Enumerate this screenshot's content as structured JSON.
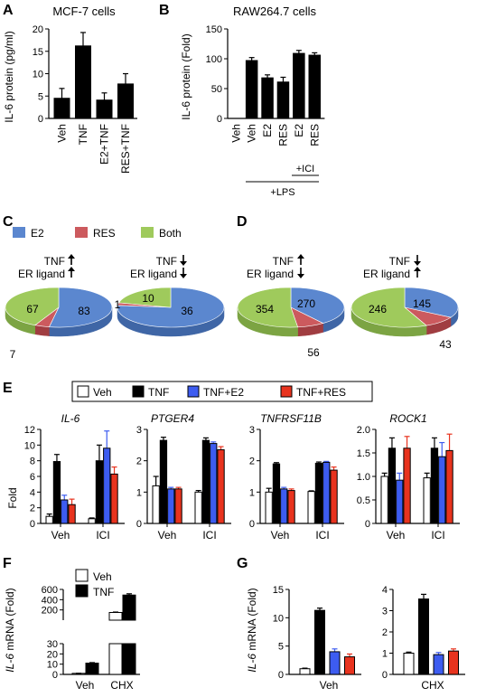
{
  "colors": {
    "e2": "#3d5cf0",
    "res": "#e8331e",
    "veh": "#ffffff",
    "tnf": "#000000",
    "pie_e2": "#5b87cf",
    "pie_res": "#cc5a5e",
    "pie_both": "#9fca5c"
  },
  "panels": {
    "A": "A",
    "B": "B",
    "C": "C",
    "D": "D",
    "E": "E",
    "F": "F",
    "G": "G"
  },
  "chart_data": [
    {
      "id": "A",
      "type": "bar",
      "title": "MCF-7 cells",
      "ylabel": "IL-6 protein (pg/ml)",
      "ylim": [
        0,
        20
      ],
      "yticks": [
        "0",
        "5",
        "10",
        "15",
        "20"
      ],
      "categories": [
        "Veh",
        "TNF",
        "E2+TNF",
        "RES+TNF"
      ],
      "values": [
        4.5,
        16.2,
        4.1,
        7.7
      ],
      "errors": [
        2.2,
        3.0,
        1.6,
        2.3
      ]
    },
    {
      "id": "B",
      "type": "bar",
      "title": "RAW264.7 cells",
      "ylabel": "IL-6 protein (Fold)",
      "ylim": [
        0,
        150
      ],
      "yticks": [
        "0",
        "50",
        "100",
        "150"
      ],
      "categories": [
        "Veh",
        "Veh",
        "E2",
        "RES",
        "E2",
        "RES"
      ],
      "values": [
        0,
        97,
        68,
        61,
        109,
        106
      ],
      "errors": [
        0,
        5,
        5,
        8,
        5,
        4
      ],
      "group_labels": [
        "+ICI",
        "+LPS"
      ]
    },
    {
      "id": "C",
      "type": "pie",
      "legend": [
        "E2",
        "RES",
        "Both"
      ],
      "pies": [
        {
          "tnf_label": "TNF",
          "er_label": "ER ligand",
          "tnf_dir": "up",
          "er_dir": "up",
          "values": [
            83,
            7,
            67
          ],
          "labels": [
            "83",
            "7",
            "67"
          ]
        },
        {
          "tnf_label": "TNF",
          "er_label": "ER ligand",
          "tnf_dir": "down",
          "er_dir": "down",
          "values": [
            36,
            1,
            10
          ],
          "labels": [
            "36",
            "1",
            "10"
          ]
        }
      ]
    },
    {
      "id": "D",
      "type": "pie",
      "pies": [
        {
          "tnf_label": "TNF",
          "er_label": "ER ligand",
          "tnf_dir": "up",
          "er_dir": "down",
          "values": [
            270,
            56,
            354
          ],
          "labels": [
            "270",
            "56",
            "354"
          ]
        },
        {
          "tnf_label": "TNF",
          "er_label": "ER ligand",
          "tnf_dir": "down",
          "er_dir": "up",
          "values": [
            145,
            43,
            246
          ],
          "labels": [
            "145",
            "43",
            "246"
          ]
        }
      ]
    },
    {
      "id": "E",
      "type": "bar",
      "legend": [
        "Veh",
        "TNF",
        "TNF+E2",
        "TNF+RES"
      ],
      "ylabel": "Fold",
      "groups": [
        "Veh",
        "ICI"
      ],
      "subplots": [
        {
          "gene": "IL-6",
          "ylim": [
            0,
            12
          ],
          "yticks": [
            "0",
            "2",
            "4",
            "6",
            "8",
            "10",
            "12"
          ],
          "values": [
            [
              0.9,
              7.9,
              3.0,
              2.4
            ],
            [
              0.6,
              8.0,
              9.6,
              6.3
            ]
          ],
          "errors": [
            [
              0.3,
              0.9,
              0.6,
              0.7
            ],
            [
              0.1,
              2.0,
              2.2,
              0.9
            ]
          ]
        },
        {
          "gene": "PTGER4",
          "ylim": [
            0,
            3
          ],
          "yticks": [
            "0",
            "1",
            "2",
            "3"
          ],
          "values": [
            [
              1.2,
              2.65,
              1.1,
              1.1
            ],
            [
              1.0,
              2.65,
              2.55,
              2.35
            ]
          ],
          "errors": [
            [
              0.3,
              0.1,
              0.05,
              0.05
            ],
            [
              0.05,
              0.08,
              0.05,
              0.1
            ]
          ]
        },
        {
          "gene": "TNFRSF11B",
          "ylim": [
            0,
            3
          ],
          "yticks": [
            "0",
            "1",
            "2",
            "3"
          ],
          "values": [
            [
              1.0,
              1.9,
              1.1,
              1.05
            ],
            [
              1.02,
              1.92,
              1.95,
              1.7
            ]
          ],
          "errors": [
            [
              0.12,
              0.04,
              0.05,
              0.05
            ],
            [
              0.02,
              0.04,
              0.03,
              0.1
            ]
          ]
        },
        {
          "gene": "ROCK1",
          "ylim": [
            0,
            2
          ],
          "yticks": [
            "0",
            "0.5",
            "1.0",
            "1.5",
            "2.0"
          ],
          "values": [
            [
              1.0,
              1.6,
              0.92,
              1.6
            ],
            [
              0.97,
              1.6,
              1.42,
              1.55
            ]
          ],
          "errors": [
            [
              0.07,
              0.22,
              0.15,
              0.25
            ],
            [
              0.1,
              0.22,
              0.3,
              0.35
            ]
          ]
        }
      ]
    },
    {
      "id": "F",
      "type": "bar",
      "legend": [
        "Veh",
        "TNF"
      ],
      "ylabel_gene": "IL-6",
      "ylabel": " mRNA (Fold)",
      "yticks_low": [
        "0",
        "10",
        "20",
        "30"
      ],
      "yticks_high": [
        "200",
        "400",
        "600"
      ],
      "categories": [
        "Veh",
        "CHX"
      ],
      "values": [
        [
          1,
          11
        ],
        [
          150,
          490
        ]
      ],
      "errors": [
        [
          0.1,
          0.5
        ],
        [
          8,
          25
        ]
      ]
    },
    {
      "id": "G",
      "type": "bar",
      "ylabel_gene": "IL-6",
      "ylabel": " mRNA (Fold)",
      "subplots": [
        {
          "category": "Veh",
          "ylim": [
            0,
            15
          ],
          "yticks": [
            "0",
            "5",
            "10",
            "15"
          ],
          "values": [
            1.0,
            11.3,
            4.0,
            3.1
          ],
          "errors": [
            0.1,
            0.4,
            0.5,
            0.5
          ]
        },
        {
          "category": "CHX",
          "ylim": [
            0,
            4
          ],
          "yticks": [
            "0",
            "1",
            "2",
            "3",
            "4"
          ],
          "values": [
            1.0,
            3.55,
            0.93,
            1.1
          ],
          "errors": [
            0.05,
            0.22,
            0.1,
            0.1
          ]
        }
      ]
    }
  ]
}
